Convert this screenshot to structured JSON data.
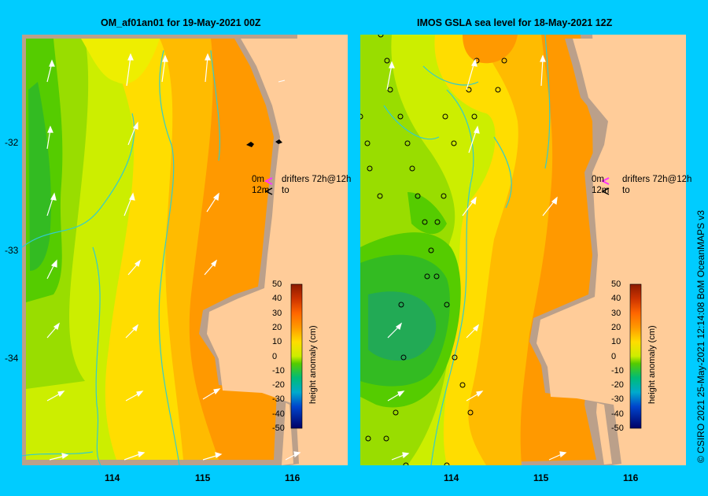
{
  "left_panel": {
    "title": "OM_af01an01  for 19-May-2021 00Z"
  },
  "right_panel": {
    "title": "IMOS GSLA sea level  for 18-May-2021 12Z"
  },
  "latitude_labels": [
    "-32",
    "-33",
    "-34"
  ],
  "longitude_labels": [
    "114",
    "115",
    "116"
  ],
  "drifters": {
    "line1_prefix": "0m",
    "line1_text": "drifters 72h@12h",
    "line2_prefix": "12m",
    "line2_text": "to"
  },
  "colorbar": {
    "label": "height anomaly (cm)",
    "ticks": [
      "50",
      "40",
      "30",
      "20",
      "10",
      "0",
      "-10",
      "-20",
      "-30",
      "-40",
      "-50"
    ]
  },
  "credit": "© CSIRO 2021   25-May-2021 12:14:08 BoM OceanMAPS v3",
  "colors": {
    "frame": "#00ccff",
    "land": "#ffcc99",
    "coast_fill": "#bba08a",
    "contour_line": "#33cccc",
    "drifter_head": "#ff33ff"
  }
}
